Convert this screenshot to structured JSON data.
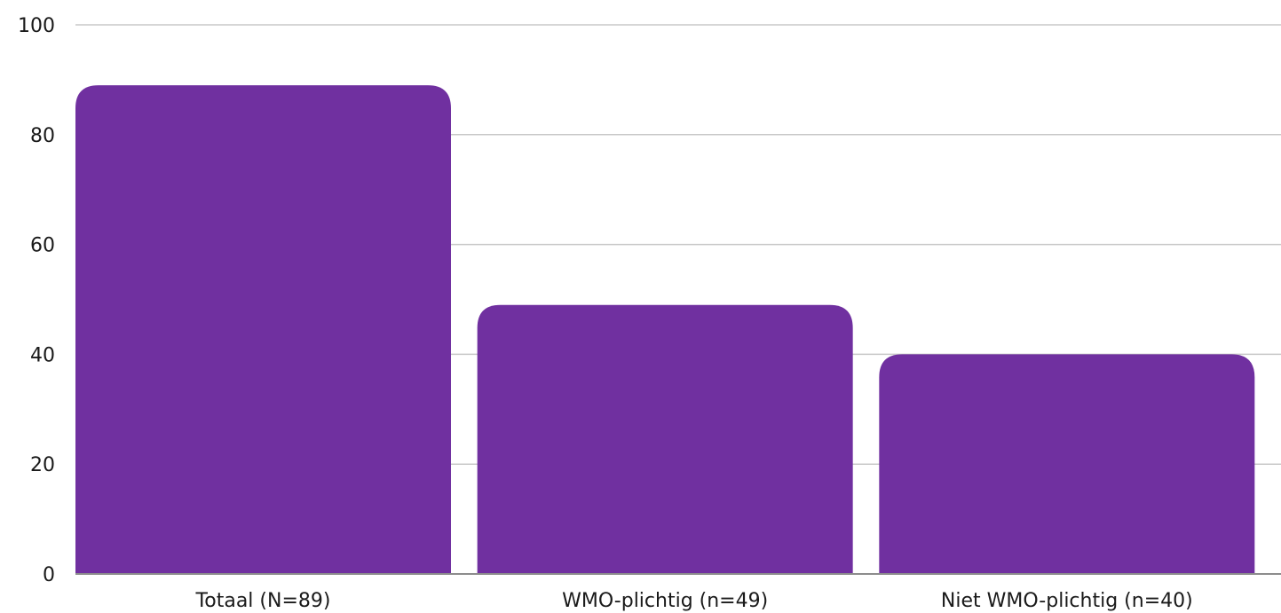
{
  "chart_data": {
    "type": "bar",
    "categories": [
      "Totaal (N=89)",
      "WMO-plichtig (n=49)",
      "Niet WMO-plichtig (n=40)"
    ],
    "values": [
      89,
      49,
      40
    ],
    "ylim": [
      0,
      100
    ],
    "yticks": [
      "0",
      "20",
      "40",
      "60",
      "80",
      "100"
    ],
    "ytick_values": [
      0,
      20,
      40,
      60,
      80,
      100
    ],
    "grid": true,
    "bar_color": "#7030a0",
    "grid_color": "#c8c8c8",
    "baseline_color": "#8c8c8c"
  }
}
